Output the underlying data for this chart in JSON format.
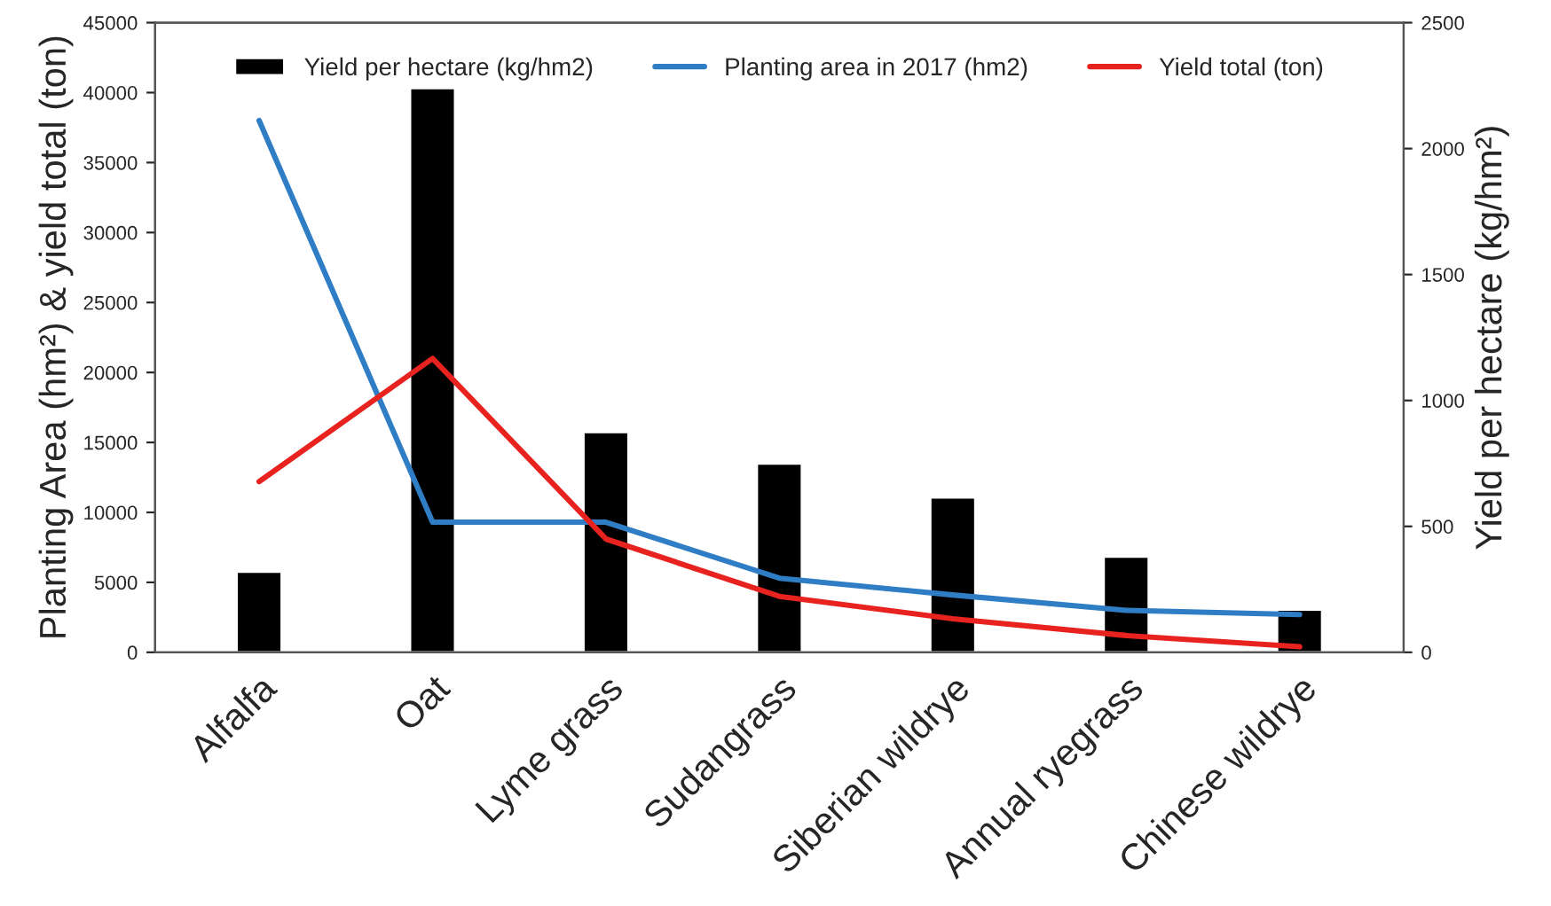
{
  "chart_data": {
    "type": "bar",
    "categories": [
      "Alfalfa",
      "Oat",
      "Lyme grass",
      "Sudangrass",
      "Siberian wildrye",
      "Annual ryegrass",
      "Chinese wildrye"
    ],
    "series": [
      {
        "name": "Yield per hectare (kg/hm2)",
        "axis": "y2",
        "color": "#000000",
        "values": [
          320,
          2240,
          875,
          750,
          615,
          380,
          170
        ]
      },
      {
        "name": "Planting area in 2017 (hm2)",
        "type": "line",
        "color": "#2f7dc4",
        "values": [
          38000,
          9300,
          9300,
          5300,
          4100,
          3000,
          2700
        ]
      },
      {
        "name": "Yield total (ton)",
        "type": "line",
        "color": "#e8231f",
        "values": [
          12200,
          21000,
          8100,
          4000,
          2400,
          1200,
          400
        ]
      }
    ],
    "ylabel": "Planting Area (hm²) & yield total (ton)",
    "y2label": "Yield per hectare (kg/hm²)",
    "ylim": [
      0,
      45000
    ],
    "yticks": [
      0,
      5000,
      10000,
      15000,
      20000,
      25000,
      30000,
      35000,
      40000,
      45000
    ],
    "y2lim": [
      0,
      2500
    ],
    "y2ticks": [
      0,
      500,
      1000,
      1500,
      2000,
      2500
    ],
    "legend": "top",
    "grid": false,
    "marker": "none",
    "line_style": "solid"
  }
}
